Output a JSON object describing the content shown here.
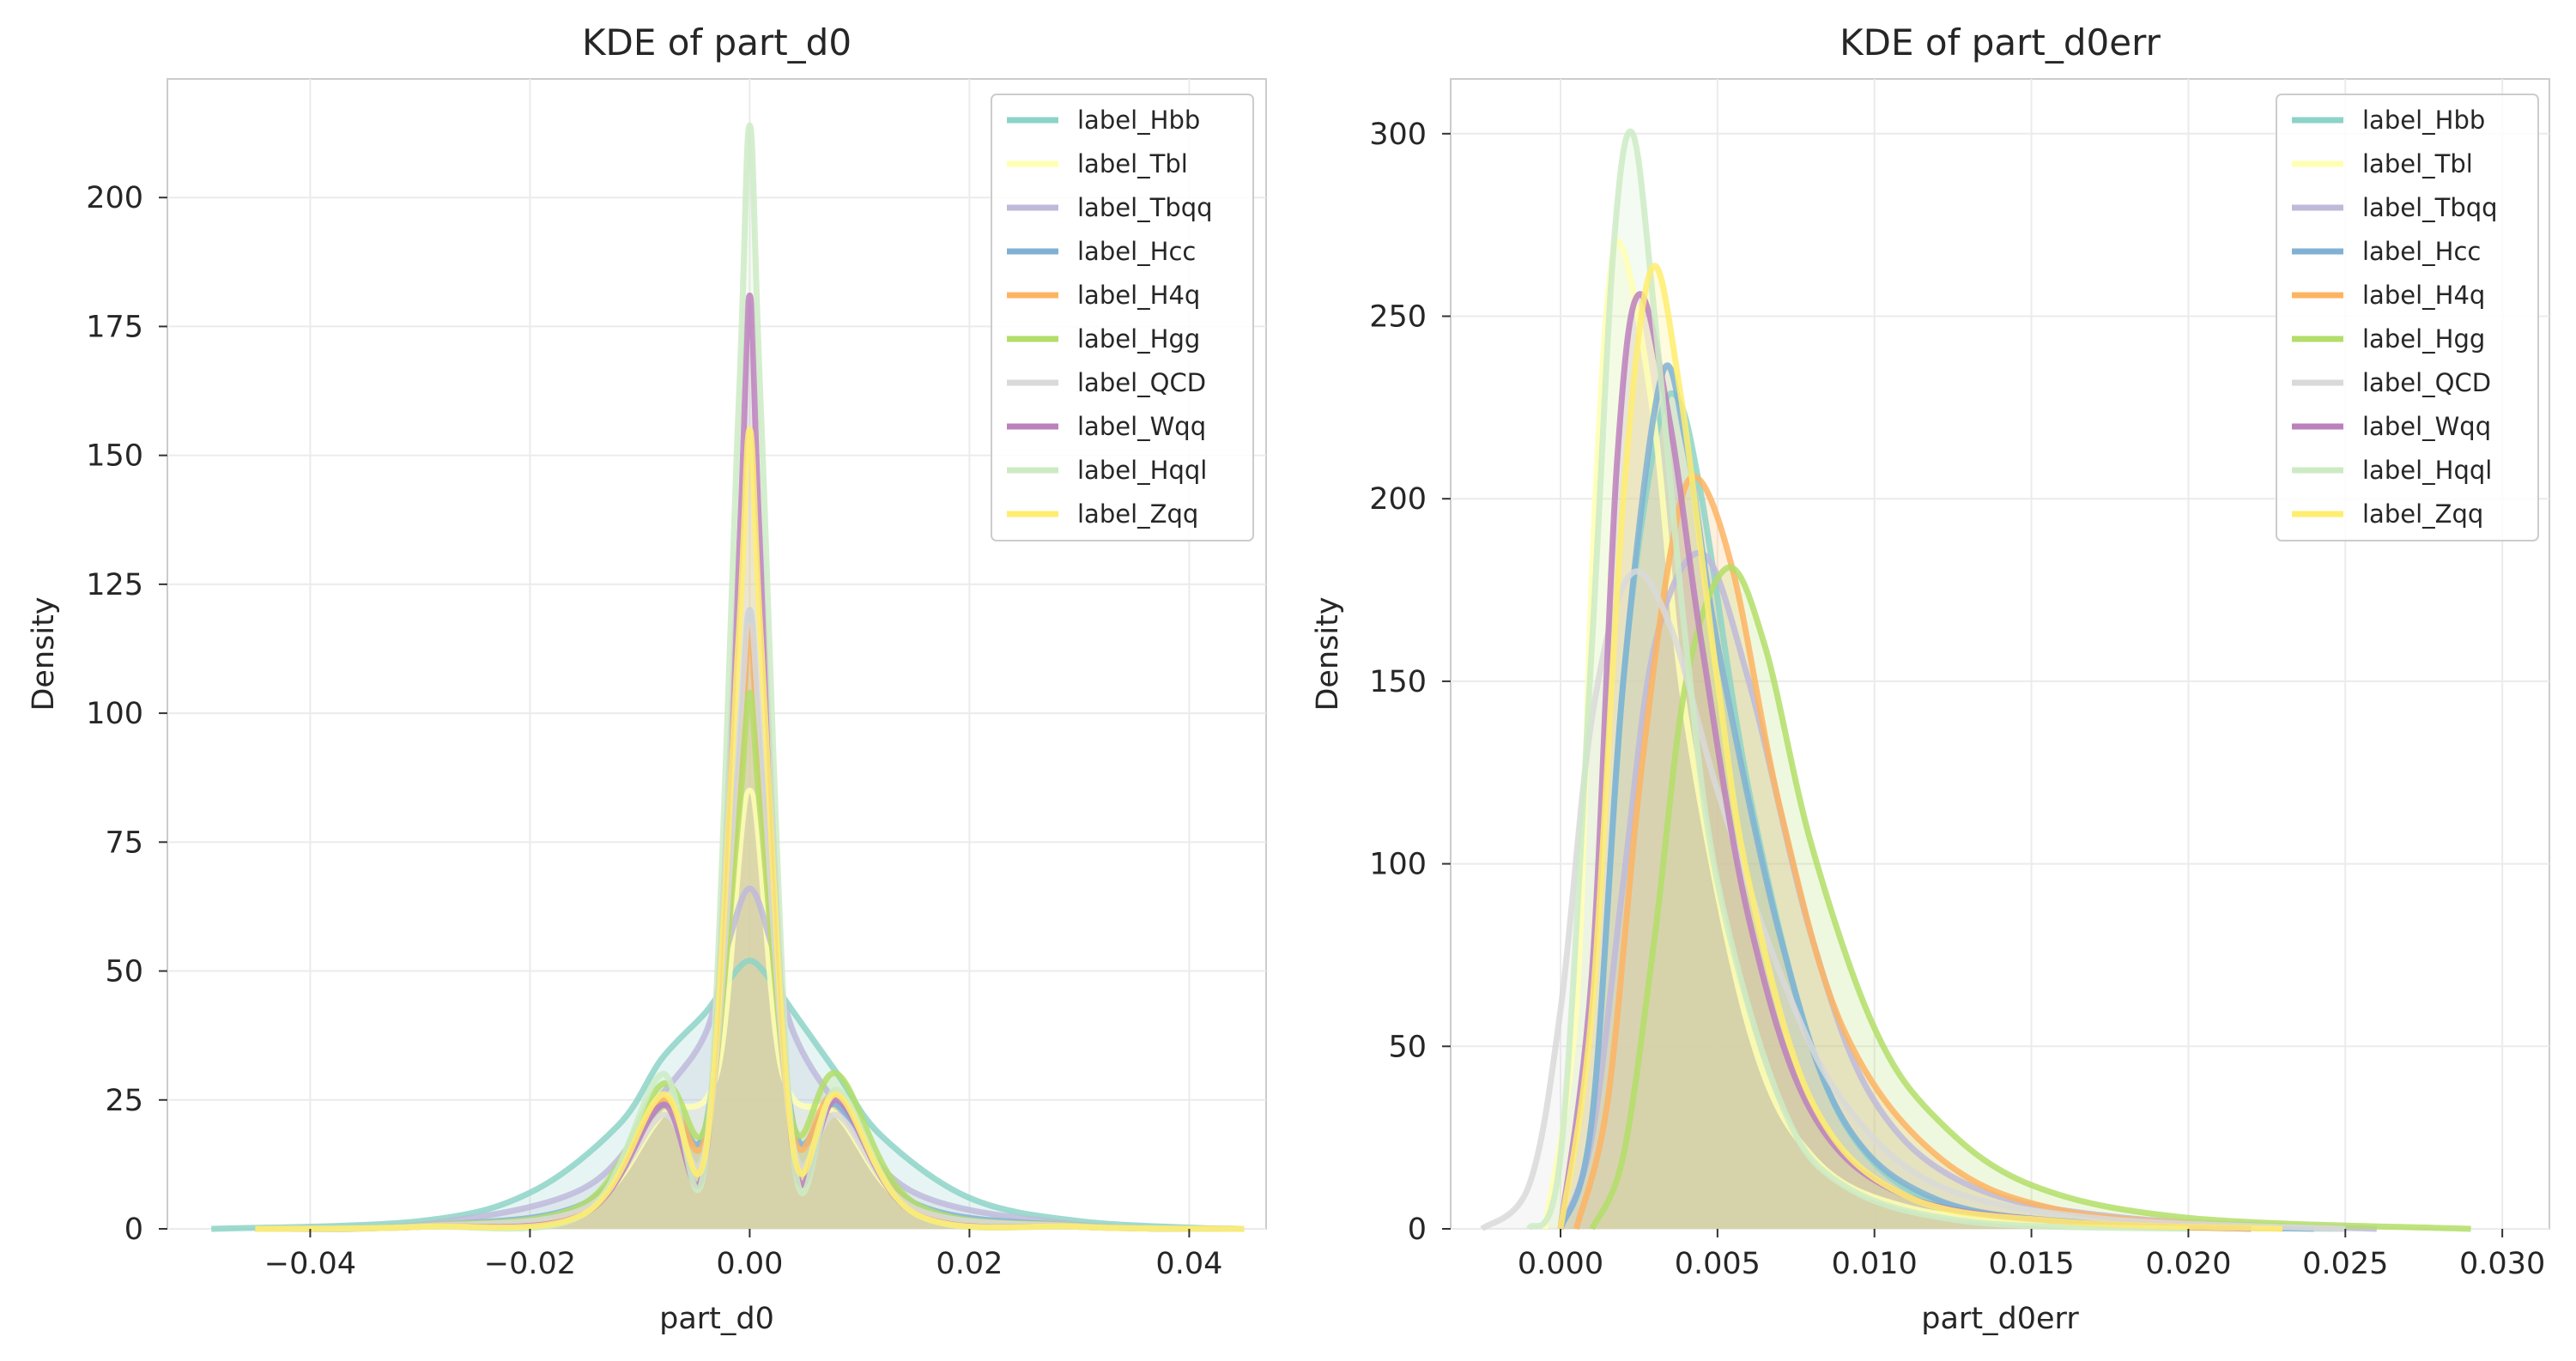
{
  "chart_data": [
    {
      "type": "line",
      "title": "KDE of part_d0",
      "xlabel": "part_d0",
      "ylabel": "Density",
      "xlim": [
        -0.053,
        0.047
      ],
      "ylim": [
        0,
        223
      ],
      "xticks": [
        -0.04,
        -0.02,
        0.0,
        0.02,
        0.04
      ],
      "xtick_labels": [
        "−0.04",
        "−0.02",
        "0.00",
        "0.02",
        "0.04"
      ],
      "yticks": [
        0,
        25,
        50,
        75,
        100,
        125,
        150,
        175,
        200
      ],
      "ytick_labels": [
        "0",
        "25",
        "50",
        "75",
        "100",
        "125",
        "150",
        "175",
        "200"
      ],
      "grid": true,
      "legend_position": "top-right",
      "series": [
        {
          "name": "label_Hbb",
          "color": "#8dd3c7",
          "x": [
            -0.049,
            -0.03,
            -0.02,
            -0.012,
            -0.008,
            -0.004,
            -0.002,
            0.0,
            0.002,
            0.004,
            0.008,
            0.012,
            0.02,
            0.03,
            0.043
          ],
          "values": [
            0,
            1.5,
            7,
            20,
            33,
            42,
            48,
            52,
            48,
            42,
            30,
            18,
            6,
            1.5,
            0
          ]
        },
        {
          "name": "label_Tbl",
          "color": "#ffffb3",
          "x": [
            -0.045,
            -0.03,
            -0.015,
            -0.008,
            -0.003,
            0.0,
            0.003,
            0.008,
            0.015,
            0.03,
            0.045
          ],
          "values": [
            0,
            0.5,
            4,
            22,
            30,
            85,
            30,
            22,
            4,
            0.5,
            0
          ]
        },
        {
          "name": "label_Tbqq",
          "color": "#bebada",
          "x": [
            -0.045,
            -0.03,
            -0.015,
            -0.008,
            -0.004,
            -0.002,
            0.0,
            0.002,
            0.004,
            0.008,
            0.015,
            0.03,
            0.045
          ],
          "values": [
            0,
            0.8,
            8,
            26,
            38,
            55,
            66,
            55,
            38,
            24,
            7,
            0.8,
            0
          ]
        },
        {
          "name": "label_Hcc",
          "color": "#80b1d3",
          "x": [
            -0.045,
            -0.03,
            -0.015,
            -0.008,
            -0.004,
            -0.001,
            0.0,
            0.001,
            0.004,
            0.008,
            0.015,
            0.03,
            0.045
          ],
          "values": [
            0,
            0.6,
            5,
            24,
            20,
            90,
            120,
            90,
            20,
            24,
            5,
            0.6,
            0
          ]
        },
        {
          "name": "label_H4q",
          "color": "#fdb462",
          "x": [
            -0.045,
            -0.03,
            -0.015,
            -0.008,
            -0.004,
            -0.001,
            0.0,
            0.001,
            0.004,
            0.008,
            0.015,
            0.03,
            0.045
          ],
          "values": [
            0,
            0.5,
            4,
            25,
            18,
            85,
            117,
            85,
            18,
            26,
            4,
            0.5,
            0
          ]
        },
        {
          "name": "label_Hgg",
          "color": "#b3de69",
          "x": [
            -0.045,
            -0.03,
            -0.015,
            -0.008,
            -0.004,
            -0.001,
            0.0,
            0.001,
            0.004,
            0.008,
            0.015,
            0.03,
            0.045
          ],
          "values": [
            0,
            0.6,
            5,
            28,
            20,
            80,
            104,
            80,
            20,
            30,
            5,
            0.6,
            0
          ]
        },
        {
          "name": "label_QCD",
          "color": "#d9d9d9",
          "x": [
            -0.045,
            -0.03,
            -0.015,
            -0.008,
            -0.004,
            -0.001,
            0.0,
            0.001,
            0.004,
            0.008,
            0.015,
            0.03,
            0.045
          ],
          "values": [
            0,
            0.5,
            4,
            22,
            16,
            95,
            120,
            95,
            16,
            22,
            4,
            0.5,
            0
          ]
        },
        {
          "name": "label_Wqq",
          "color": "#bc80bd",
          "x": [
            -0.045,
            -0.03,
            -0.015,
            -0.008,
            -0.004,
            -0.001,
            0.0,
            0.001,
            0.004,
            0.008,
            0.015,
            0.03,
            0.045
          ],
          "values": [
            0,
            0.4,
            3,
            24,
            14,
            130,
            181,
            130,
            14,
            25,
            3,
            0.4,
            0
          ]
        },
        {
          "name": "label_Hqql",
          "color": "#ccebc5",
          "x": [
            -0.045,
            -0.03,
            -0.015,
            -0.008,
            -0.004,
            -0.001,
            0.0,
            0.001,
            0.004,
            0.008,
            0.015,
            0.03,
            0.045
          ],
          "values": [
            0,
            0.4,
            3,
            30,
            14,
            160,
            214,
            160,
            14,
            27,
            3,
            0.4,
            0
          ]
        },
        {
          "name": "label_Zqq",
          "color": "#ffed6f",
          "x": [
            -0.045,
            -0.03,
            -0.015,
            -0.008,
            -0.004,
            -0.001,
            0.0,
            0.001,
            0.004,
            0.008,
            0.015,
            0.03,
            0.045
          ],
          "values": [
            0,
            0.4,
            3,
            26,
            15,
            115,
            155,
            115,
            15,
            26,
            3,
            0.4,
            0
          ]
        }
      ]
    },
    {
      "type": "line",
      "title": "KDE of part_d0err",
      "xlabel": "part_d0err",
      "ylabel": "Density",
      "xlim": [
        -0.0035,
        0.0315
      ],
      "ylim": [
        0,
        315
      ],
      "xticks": [
        0.0,
        0.005,
        0.01,
        0.015,
        0.02,
        0.025,
        0.03
      ],
      "xtick_labels": [
        "0.000",
        "0.005",
        "0.010",
        "0.015",
        "0.020",
        "0.025",
        "0.030"
      ],
      "yticks": [
        0,
        50,
        100,
        150,
        200,
        250,
        300
      ],
      "ytick_labels": [
        "0",
        "50",
        "100",
        "150",
        "200",
        "250",
        "300"
      ],
      "grid": true,
      "legend_position": "top-right",
      "series": [
        {
          "name": "label_Hbb",
          "color": "#8dd3c7",
          "x": [
            0.0,
            0.001,
            0.002,
            0.003,
            0.0037,
            0.0045,
            0.006,
            0.008,
            0.01,
            0.013,
            0.018,
            0.025
          ],
          "values": [
            0,
            30,
            150,
            215,
            228,
            200,
            120,
            50,
            18,
            5,
            1,
            0
          ]
        },
        {
          "name": "label_Tbl",
          "color": "#ffffb3",
          "x": [
            -0.0005,
            0.0005,
            0.001,
            0.0015,
            0.002,
            0.003,
            0.004,
            0.006,
            0.008,
            0.011,
            0.016,
            0.022
          ],
          "values": [
            0,
            60,
            180,
            255,
            268,
            220,
            140,
            55,
            20,
            6,
            1,
            0
          ]
        },
        {
          "name": "label_Tbqq",
          "color": "#bebada",
          "x": [
            0.0,
            0.001,
            0.002,
            0.003,
            0.0045,
            0.006,
            0.008,
            0.01,
            0.013,
            0.018,
            0.026
          ],
          "values": [
            0,
            25,
            95,
            160,
            185,
            150,
            80,
            35,
            12,
            3,
            0
          ]
        },
        {
          "name": "label_Hcc",
          "color": "#80b1d3",
          "x": [
            0.0,
            0.001,
            0.002,
            0.0032,
            0.004,
            0.005,
            0.007,
            0.009,
            0.012,
            0.017,
            0.024
          ],
          "values": [
            0,
            30,
            150,
            233,
            215,
            160,
            80,
            30,
            8,
            1.5,
            0
          ]
        },
        {
          "name": "label_H4q",
          "color": "#fdb462",
          "x": [
            0.0005,
            0.0015,
            0.0025,
            0.0035,
            0.0043,
            0.0055,
            0.007,
            0.009,
            0.012,
            0.016,
            0.023
          ],
          "values": [
            0,
            35,
            120,
            185,
            206,
            180,
            115,
            55,
            20,
            5,
            0
          ]
        },
        {
          "name": "label_Hgg",
          "color": "#b3de69",
          "x": [
            0.001,
            0.002,
            0.003,
            0.004,
            0.0053,
            0.0065,
            0.008,
            0.01,
            0.012,
            0.015,
            0.02,
            0.029
          ],
          "values": [
            0,
            20,
            80,
            150,
            181,
            160,
            105,
            55,
            30,
            12,
            3,
            0
          ]
        },
        {
          "name": "label_QCD",
          "color": "#d9d9d9",
          "x": [
            -0.0025,
            -0.001,
            0.0,
            0.001,
            0.0022,
            0.0035,
            0.005,
            0.007,
            0.009,
            0.012,
            0.017,
            0.025
          ],
          "values": [
            0,
            12,
            60,
            140,
            179,
            165,
            120,
            70,
            35,
            12,
            3,
            0
          ]
        },
        {
          "name": "label_Wqq",
          "color": "#bc80bd",
          "x": [
            0.0,
            0.001,
            0.0018,
            0.0025,
            0.0035,
            0.0045,
            0.006,
            0.008,
            0.011,
            0.016,
            0.022
          ],
          "values": [
            0,
            70,
            210,
            256,
            220,
            160,
            85,
            32,
            9,
            2,
            0
          ]
        },
        {
          "name": "label_Hqql",
          "color": "#ccebc5",
          "x": [
            -0.001,
            0.0,
            0.001,
            0.0017,
            0.0023,
            0.003,
            0.004,
            0.005,
            0.007,
            0.009,
            0.013,
            0.02
          ],
          "values": [
            0,
            20,
            160,
            270,
            300,
            250,
            160,
            95,
            35,
            12,
            2,
            0
          ]
        },
        {
          "name": "label_Zqq",
          "color": "#ffed6f",
          "x": [
            0.0,
            0.001,
            0.002,
            0.0029,
            0.0038,
            0.005,
            0.006,
            0.008,
            0.011,
            0.016,
            0.023
          ],
          "values": [
            0,
            60,
            200,
            263,
            230,
            150,
            95,
            35,
            9,
            2,
            0
          ]
        }
      ]
    }
  ]
}
